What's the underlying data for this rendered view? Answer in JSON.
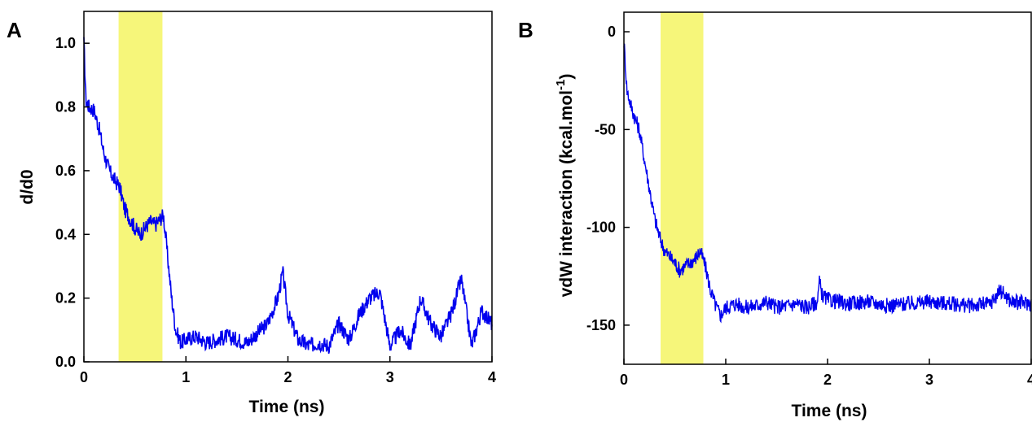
{
  "figure": {
    "panels": [
      {
        "label": "A",
        "xlabel": "Time (ns)",
        "ylabel": "d/d0"
      },
      {
        "label": "B",
        "xlabel": "Time (ns)",
        "ylabel": "vdW interaction (kcal.mol",
        "ylabel_sup": "-1",
        "ylabel_close": ")"
      }
    ],
    "highlight_color": "#f6f67a",
    "line_color": "#0000ee"
  },
  "chart_data": [
    {
      "type": "line",
      "title": "",
      "xlabel": "Time (ns)",
      "ylabel": "d/d0",
      "xlim": [
        0,
        4
      ],
      "ylim": [
        0,
        1.1
      ],
      "xticks": [
        "0",
        "1",
        "2",
        "3",
        "4"
      ],
      "yticks": [
        "0.0",
        "0.2",
        "0.4",
        "0.6",
        "0.8",
        "1.0"
      ],
      "highlight_x": [
        0.34,
        0.77
      ],
      "series": [
        {
          "x": [
            0,
            0.02,
            0.05,
            0.1,
            0.15,
            0.2,
            0.25,
            0.3,
            0.35,
            0.4,
            0.45,
            0.5,
            0.55,
            0.6,
            0.65,
            0.7,
            0.75,
            0.78,
            0.8,
            0.83,
            0.86,
            0.9,
            0.95,
            1.0,
            1.1,
            1.2,
            1.3,
            1.4,
            1.5,
            1.6,
            1.7,
            1.8,
            1.9,
            1.95,
            2.0,
            2.1,
            2.2,
            2.3,
            2.4,
            2.5,
            2.6,
            2.7,
            2.8,
            2.9,
            3.0,
            3.1,
            3.2,
            3.3,
            3.4,
            3.5,
            3.6,
            3.7,
            3.8,
            3.9,
            4.0
          ],
          "y": [
            1.0,
            0.82,
            0.8,
            0.79,
            0.73,
            0.65,
            0.6,
            0.57,
            0.55,
            0.48,
            0.45,
            0.42,
            0.4,
            0.42,
            0.44,
            0.43,
            0.45,
            0.46,
            0.4,
            0.3,
            0.2,
            0.1,
            0.06,
            0.07,
            0.08,
            0.06,
            0.07,
            0.08,
            0.07,
            0.06,
            0.09,
            0.12,
            0.2,
            0.28,
            0.15,
            0.07,
            0.05,
            0.06,
            0.05,
            0.12,
            0.07,
            0.15,
            0.2,
            0.22,
            0.05,
            0.1,
            0.05,
            0.2,
            0.12,
            0.08,
            0.15,
            0.26,
            0.05,
            0.16,
            0.12
          ]
        }
      ]
    },
    {
      "type": "line",
      "title": "",
      "xlabel": "Time (ns)",
      "ylabel": "vdW interaction (kcal.mol-1)",
      "xlim": [
        0,
        4
      ],
      "ylim": [
        -170,
        10
      ],
      "xticks": [
        "0",
        "1",
        "2",
        "3",
        "4"
      ],
      "yticks": [
        "0",
        "-50",
        "-100",
        "-150"
      ],
      "highlight_x": [
        0.36,
        0.78
      ],
      "series": [
        {
          "x": [
            0,
            0.03,
            0.07,
            0.1,
            0.15,
            0.2,
            0.25,
            0.3,
            0.35,
            0.4,
            0.45,
            0.5,
            0.55,
            0.6,
            0.65,
            0.7,
            0.75,
            0.8,
            0.85,
            0.9,
            0.95,
            1.0,
            1.1,
            1.2,
            1.3,
            1.4,
            1.5,
            1.6,
            1.7,
            1.8,
            1.9,
            1.92,
            1.95,
            2.0,
            2.2,
            2.4,
            2.6,
            2.8,
            3.0,
            3.2,
            3.4,
            3.6,
            3.7,
            3.8,
            4.0
          ],
          "y": [
            -5,
            -30,
            -38,
            -43,
            -50,
            -65,
            -80,
            -95,
            -105,
            -112,
            -115,
            -118,
            -122,
            -120,
            -118,
            -116,
            -112,
            -120,
            -132,
            -140,
            -145,
            -141,
            -139,
            -141,
            -140,
            -138,
            -141,
            -140,
            -139,
            -141,
            -138,
            -128,
            -135,
            -137,
            -139,
            -138,
            -140,
            -139,
            -138,
            -139,
            -140,
            -139,
            -132,
            -138,
            -139
          ]
        }
      ]
    }
  ]
}
